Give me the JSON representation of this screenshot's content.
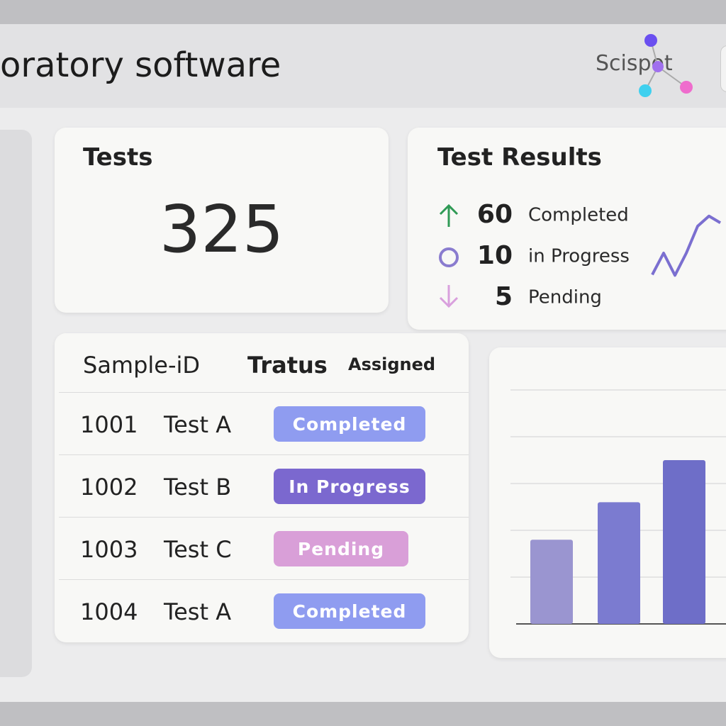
{
  "header": {
    "title": "oratory software",
    "logo": "Scispot"
  },
  "tests_card": {
    "title": "Tests",
    "count": 325
  },
  "results_card": {
    "title": "Test Results",
    "items": [
      {
        "value": 60,
        "label": "Completed"
      },
      {
        "value": 10,
        "label": "in Progress"
      },
      {
        "value": 5,
        "label": "Pending"
      }
    ],
    "sparkline": {
      "type": "line",
      "values": [
        8,
        40,
        7,
        40,
        80,
        95,
        85
      ],
      "ylim": [
        0,
        100
      ],
      "color": "#7b6fd0"
    }
  },
  "table": {
    "columns": [
      "Sample-iD",
      "Tratus",
      "Assigned"
    ],
    "rows": [
      [
        "1001",
        "Test A",
        "Completed"
      ],
      [
        "1002",
        "Test B",
        "In Progress"
      ],
      [
        "1003",
        "Test C",
        "Pending"
      ],
      [
        "1004",
        "Test A",
        "Completed"
      ]
    ],
    "status_colors": {
      "Completed": "#8f9cf0",
      "In Progress": "#7b68cf",
      "Pending": "#d99fd8"
    }
  },
  "bar_chart": {
    "type": "bar",
    "values": [
      1.8,
      2.6,
      3.5
    ],
    "colors": [
      "#9a95d0",
      "#7b7bd0",
      "#6e6ec8"
    ],
    "ylim": [
      0,
      5
    ],
    "yticks": [
      1,
      2,
      3,
      4,
      5
    ],
    "grid": true
  }
}
